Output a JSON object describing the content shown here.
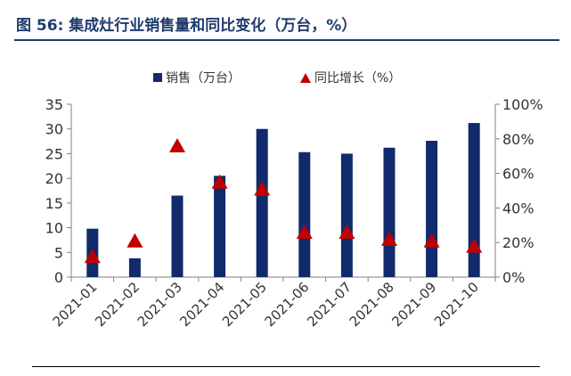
{
  "header": {
    "figure_title": "图 56: 集成灶行业销售量和同比变化（万台，%）"
  },
  "colors": {
    "title": "#1f3b6e",
    "bar": "#102a6b",
    "marker": "#c00000",
    "axis": "#808080",
    "text": "#333333"
  },
  "chart_data": {
    "type": "bar",
    "title": "",
    "xlabel": "",
    "ylabel": "",
    "categories": [
      "2021-01",
      "2021-02",
      "2021-03",
      "2021-04",
      "2021-05",
      "2021-06",
      "2021-07",
      "2021-08",
      "2021-09",
      "2021-10"
    ],
    "ylim": [
      0,
      35
    ],
    "yticks": [
      0,
      5,
      10,
      15,
      20,
      25,
      30,
      35
    ],
    "y2lim": [
      0,
      100
    ],
    "y2ticks": [
      0,
      20,
      40,
      60,
      80,
      100
    ],
    "y2tick_labels": [
      "0%",
      "20%",
      "40%",
      "60%",
      "80%",
      "100%"
    ],
    "grid": false,
    "legend_position": "top-center",
    "series": [
      {
        "name": "销售（万台）",
        "type": "bar",
        "axis": "left",
        "values": [
          9.8,
          3.8,
          16.5,
          20.5,
          30.0,
          25.3,
          25.0,
          26.2,
          27.6,
          31.2
        ]
      },
      {
        "name": "同比增长（%）",
        "type": "scatter",
        "marker": "triangle",
        "axis": "right",
        "values": [
          12,
          21,
          76,
          55,
          51,
          26,
          26,
          22,
          21,
          18
        ]
      }
    ]
  }
}
